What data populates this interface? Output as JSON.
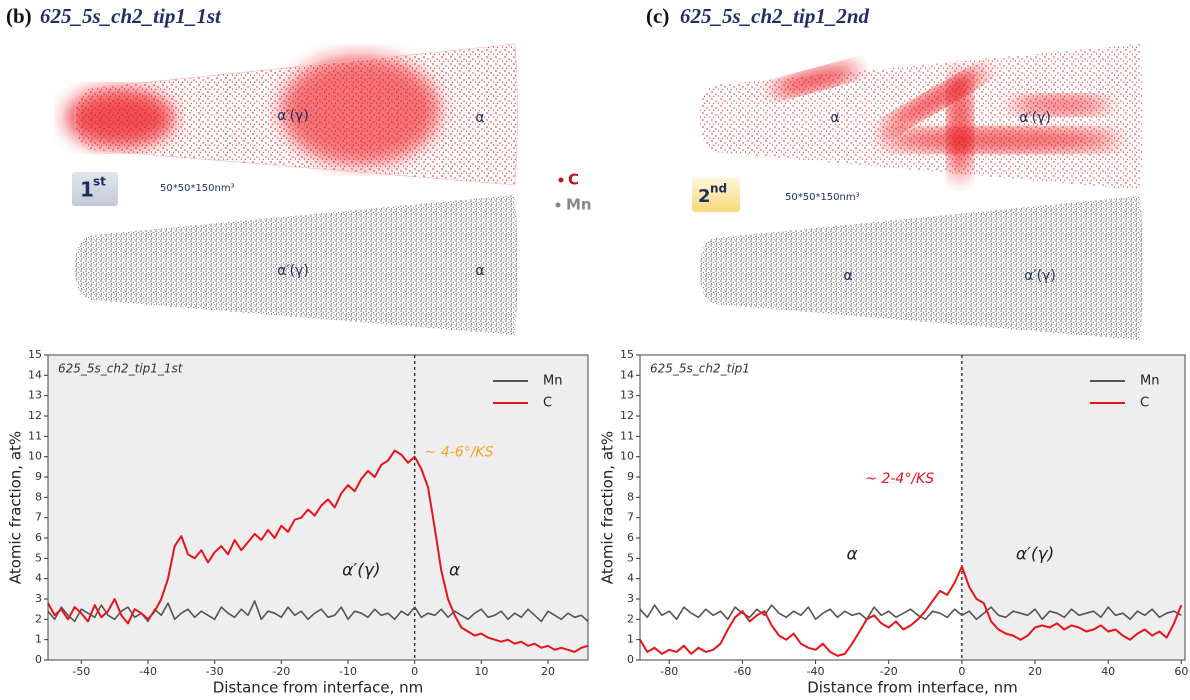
{
  "panels": [
    {
      "label": "(b)",
      "title": "625_5s_ch2_tip1_1st",
      "badge": "1",
      "badge_sup": "st",
      "volume": "50*50*150nm³",
      "red_labels": [
        "α′(γ)",
        "α"
      ],
      "gray_labels": [
        "α′(γ)",
        "α"
      ]
    },
    {
      "label": "(c)",
      "title": "625_5s_ch2_tip1_2nd",
      "badge": "2",
      "badge_sup": "nd",
      "volume": "50*50*150nm³",
      "red_labels": [
        "α",
        "α′(γ)"
      ],
      "gray_labels": [
        "α",
        "α′(γ)"
      ]
    }
  ],
  "species": [
    "C",
    "Mn"
  ],
  "chart_data": [
    {
      "type": "line",
      "corner_label": "625_5s_ch2_tip1_1st",
      "xlabel": "Distance from interface, nm",
      "ylabel": "Atomic fraction, at%",
      "xlim": [
        -55,
        26
      ],
      "ylim": [
        0,
        15
      ],
      "xticks": [
        -50,
        -40,
        -30,
        -20,
        -10,
        0,
        10,
        20
      ],
      "yticks": [
        0,
        1,
        2,
        3,
        4,
        5,
        6,
        7,
        8,
        9,
        10,
        11,
        12,
        13,
        14,
        15
      ],
      "vline": 0,
      "shade": [
        -55,
        26
      ],
      "legend": "upper right",
      "x": [
        -55,
        -54,
        -53,
        -52,
        -51,
        -50,
        -49,
        -48,
        -47,
        -46,
        -45,
        -44,
        -43,
        -42,
        -41,
        -40,
        -39,
        -38,
        -37,
        -36,
        -35,
        -34,
        -33,
        -32,
        -31,
        -30,
        -29,
        -28,
        -27,
        -26,
        -25,
        -24,
        -23,
        -22,
        -21,
        -20,
        -19,
        -18,
        -17,
        -16,
        -15,
        -14,
        -13,
        -12,
        -11,
        -10,
        -9,
        -8,
        -7,
        -6,
        -5,
        -4,
        -3,
        -2,
        -1,
        0,
        1,
        2,
        3,
        4,
        5,
        6,
        7,
        8,
        9,
        10,
        11,
        12,
        13,
        14,
        15,
        16,
        17,
        18,
        19,
        20,
        21,
        22,
        23,
        24,
        25,
        26
      ],
      "series": [
        {
          "name": "Mn",
          "color": "#555555",
          "values": [
            2.4,
            2.0,
            2.6,
            2.2,
            1.9,
            2.5,
            2.3,
            2.1,
            2.7,
            2.2,
            2.0,
            2.4,
            2.6,
            2.1,
            2.3,
            1.9,
            2.5,
            2.2,
            2.8,
            2.0,
            2.3,
            2.5,
            2.1,
            2.4,
            2.2,
            2.0,
            2.6,
            2.3,
            2.1,
            2.5,
            2.2,
            2.9,
            2.0,
            2.4,
            2.3,
            2.1,
            2.6,
            2.2,
            2.4,
            2.0,
            2.3,
            2.5,
            2.1,
            2.2,
            2.6,
            2.0,
            2.4,
            2.3,
            2.1,
            2.5,
            2.2,
            2.3,
            2.0,
            2.4,
            2.2,
            2.6,
            2.1,
            2.3,
            2.2,
            2.5,
            2.1,
            2.4,
            2.2,
            2.0,
            2.3,
            2.5,
            2.1,
            2.2,
            2.4,
            2.0,
            2.3,
            2.1,
            2.5,
            2.2,
            1.9,
            2.4,
            2.2,
            2.0,
            2.3,
            2.1,
            2.2,
            1.9
          ]
        },
        {
          "name": "C",
          "color": "#e8141a",
          "values": [
            2.8,
            2.2,
            2.5,
            2.0,
            2.6,
            2.3,
            1.9,
            2.7,
            2.1,
            2.4,
            3.0,
            2.2,
            1.8,
            2.5,
            2.3,
            2.0,
            2.4,
            3.0,
            4.0,
            5.6,
            6.1,
            5.2,
            5.0,
            5.4,
            4.8,
            5.3,
            5.6,
            5.2,
            5.9,
            5.4,
            5.8,
            6.2,
            5.9,
            6.4,
            6.0,
            6.6,
            6.3,
            6.9,
            7.0,
            7.4,
            7.1,
            7.6,
            7.9,
            7.5,
            8.2,
            8.6,
            8.3,
            8.9,
            9.3,
            9.0,
            9.6,
            9.8,
            10.3,
            10.1,
            9.7,
            10.0,
            9.4,
            8.5,
            6.5,
            4.4,
            3.0,
            2.2,
            1.6,
            1.4,
            1.2,
            1.3,
            1.1,
            1.0,
            0.9,
            1.0,
            0.8,
            0.9,
            0.7,
            0.8,
            0.6,
            0.7,
            0.5,
            0.6,
            0.5,
            0.4,
            0.6,
            0.7
          ]
        }
      ],
      "annotations": [
        {
          "text": "~ 4-6°/KS",
          "color": "#f5a623"
        },
        {
          "text": "α′(γ)",
          "color": "#222222"
        },
        {
          "text": "α",
          "color": "#222222"
        }
      ]
    },
    {
      "type": "line",
      "corner_label": "625_5s_ch2_tip1",
      "xlabel": "Distance from interface, nm",
      "ylabel": "Atomic fraction, at%",
      "xlim": [
        -88,
        61
      ],
      "ylim": [
        0,
        15
      ],
      "xticks": [
        -80,
        -60,
        -40,
        -20,
        0,
        20,
        40,
        60
      ],
      "yticks": [
        0,
        1,
        2,
        3,
        4,
        5,
        6,
        7,
        8,
        9,
        10,
        11,
        12,
        13,
        14,
        15
      ],
      "vline": 0,
      "shade": [
        0,
        61
      ],
      "legend": "upper right",
      "x": [
        -88,
        -86,
        -84,
        -82,
        -80,
        -78,
        -76,
        -74,
        -72,
        -70,
        -68,
        -66,
        -64,
        -62,
        -60,
        -58,
        -56,
        -54,
        -52,
        -50,
        -48,
        -46,
        -44,
        -42,
        -40,
        -38,
        -36,
        -34,
        -32,
        -30,
        -28,
        -26,
        -24,
        -22,
        -20,
        -18,
        -16,
        -14,
        -12,
        -10,
        -8,
        -6,
        -4,
        -2,
        0,
        2,
        4,
        6,
        8,
        10,
        12,
        14,
        16,
        18,
        20,
        22,
        24,
        26,
        28,
        30,
        32,
        34,
        36,
        38,
        40,
        42,
        44,
        46,
        48,
        50,
        52,
        54,
        56,
        58,
        60
      ],
      "series": [
        {
          "name": "Mn",
          "color": "#555555",
          "values": [
            2.5,
            2.1,
            2.7,
            2.2,
            2.4,
            2.0,
            2.6,
            2.3,
            2.1,
            2.5,
            2.2,
            2.4,
            2.0,
            2.6,
            2.3,
            2.1,
            2.5,
            2.2,
            2.7,
            2.3,
            2.1,
            2.4,
            2.2,
            2.6,
            2.0,
            2.3,
            2.5,
            2.1,
            2.4,
            2.2,
            2.3,
            2.0,
            2.6,
            2.2,
            2.4,
            2.1,
            2.3,
            2.5,
            2.2,
            2.0,
            2.4,
            2.3,
            2.1,
            2.5,
            2.2,
            2.4,
            2.0,
            2.3,
            2.6,
            2.2,
            2.1,
            2.4,
            2.3,
            2.2,
            2.5,
            2.0,
            2.4,
            2.3,
            2.1,
            2.5,
            2.2,
            2.3,
            2.4,
            2.1,
            2.6,
            2.2,
            2.3,
            2.0,
            2.4,
            2.2,
            2.5,
            2.1,
            2.3,
            2.4,
            2.2
          ]
        },
        {
          "name": "C",
          "color": "#e8141a",
          "values": [
            1.0,
            0.4,
            0.6,
            0.3,
            0.5,
            0.4,
            0.7,
            0.3,
            0.6,
            0.4,
            0.5,
            0.8,
            1.5,
            2.1,
            2.4,
            1.9,
            2.2,
            2.4,
            1.7,
            1.2,
            1.0,
            1.3,
            0.8,
            0.6,
            0.5,
            0.8,
            0.4,
            0.2,
            0.3,
            0.8,
            1.4,
            2.0,
            2.2,
            1.8,
            1.6,
            1.9,
            1.5,
            1.7,
            2.0,
            2.4,
            2.9,
            3.4,
            3.2,
            3.8,
            4.6,
            3.6,
            3.0,
            2.8,
            1.9,
            1.5,
            1.3,
            1.2,
            1.0,
            1.2,
            1.6,
            1.7,
            1.6,
            1.8,
            1.5,
            1.7,
            1.6,
            1.4,
            1.5,
            1.7,
            1.4,
            1.5,
            1.2,
            1.0,
            1.3,
            1.5,
            1.2,
            1.4,
            1.1,
            1.8,
            2.7
          ]
        }
      ],
      "annotations": [
        {
          "text": "~ 2-4°/KS",
          "color": "#e8141a"
        },
        {
          "text": "α",
          "color": "#222222"
        },
        {
          "text": "α′(γ)",
          "color": "#222222"
        }
      ]
    }
  ]
}
